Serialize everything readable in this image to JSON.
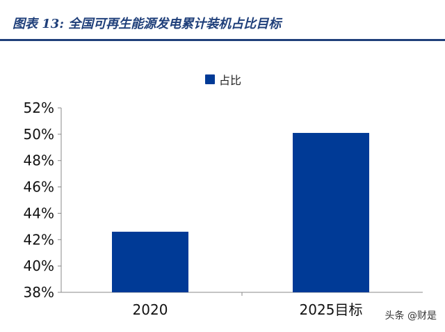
{
  "header": {
    "title": "图表 13:  全国可再生能源发电累计装机占比目标"
  },
  "colors": {
    "accent": "#1f3f7a",
    "bar": "#003a96"
  },
  "watermark": "头条 @财是",
  "chart_data": {
    "type": "bar",
    "title": "",
    "xlabel": "",
    "ylabel": "",
    "categories": [
      "2020",
      "2025目标"
    ],
    "series": [
      {
        "name": "占比",
        "values": [
          42.6,
          50.1
        ]
      }
    ],
    "ylim": [
      38,
      52
    ],
    "yticks": [
      38,
      40,
      42,
      44,
      46,
      48,
      50,
      52
    ],
    "ytick_labels": [
      "38%",
      "40%",
      "42%",
      "44%",
      "46%",
      "48%",
      "50%",
      "52%"
    ],
    "grid": false,
    "legend": "top-center"
  }
}
